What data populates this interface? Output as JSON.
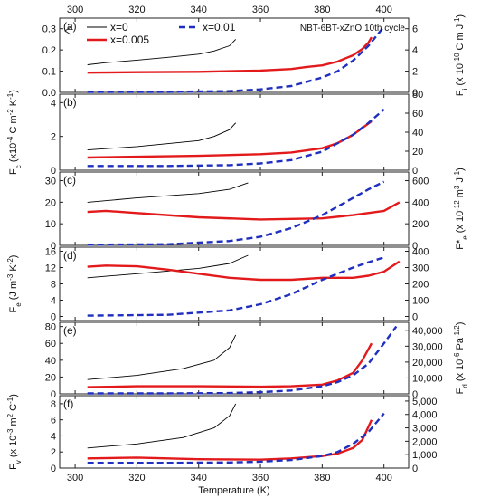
{
  "chart_data": {
    "type": "line",
    "annotation": "NBT-6BT-xZnO 10th cycle",
    "xlabel": "Temperature (K)",
    "xlim": [
      295,
      408
    ],
    "x_ticks": [
      "300",
      "320",
      "340",
      "360",
      "380",
      "400"
    ],
    "x_tick_values": [
      300,
      320,
      340,
      360,
      380,
      400
    ],
    "legend": [
      {
        "name": "x=0",
        "color": "#000000",
        "dash": "solid"
      },
      {
        "name": "x=0.005",
        "color": "#e31a1c",
        "dash": "solid"
      },
      {
        "name": "x=0.01",
        "color": "#1f2fbf",
        "dash": "dashed"
      }
    ],
    "colors": {
      "x=0": "#000000",
      "x=0.005": "#e31a1c",
      "x=0.01": "#1f2fbf"
    },
    "panels": [
      {
        "label": "(a)",
        "left": {
          "ylim": [
            0,
            0.35
          ],
          "ticks": [
            "0.0",
            "0.1",
            "0.2",
            "0.3"
          ],
          "tick_values": [
            0,
            0.1,
            0.2,
            0.3
          ],
          "label_parts": []
        },
        "right": {
          "ylim": [
            0,
            7
          ],
          "ticks": [
            "0",
            "2",
            "4",
            "6"
          ],
          "tick_values": [
            0,
            2,
            4,
            6
          ],
          "label_parts": [
            "F",
            "i",
            " (x 10",
            "-10",
            " C m J",
            "-1",
            ")"
          ],
          "label_fmt": "bsnpnpn"
        },
        "series": [
          {
            "name": "x=0",
            "axis": "left",
            "x": [
              304,
              310,
              320,
              330,
              340,
              345,
              350,
              352
            ],
            "y": [
              0.13,
              0.14,
              0.152,
              0.165,
              0.18,
              0.195,
              0.22,
              0.25
            ]
          },
          {
            "name": "x=0.005",
            "axis": "left",
            "x": [
              304,
              320,
              340,
              360,
              370,
              375,
              380,
              385,
              390,
              393,
              395,
              396
            ],
            "y": [
              0.093,
              0.095,
              0.097,
              0.103,
              0.11,
              0.12,
              0.127,
              0.145,
              0.175,
              0.205,
              0.235,
              0.26
            ]
          },
          {
            "name": "x=0.01",
            "axis": "left",
            "x": [
              304,
              330,
              350,
              360,
              370,
              380,
              385,
              390,
              395,
              400
            ],
            "y": [
              0.002,
              0.002,
              0.006,
              0.014,
              0.03,
              0.07,
              0.1,
              0.15,
              0.22,
              0.31
            ]
          }
        ]
      },
      {
        "label": "(b)",
        "left": {
          "ylim": [
            0,
            4.5
          ],
          "ticks": [
            "0",
            "2",
            "4"
          ],
          "tick_values": [
            0,
            2,
            4
          ],
          "label_parts": [
            "F",
            "c",
            " (x10",
            "-4",
            " C m",
            "-2",
            " K",
            "-1",
            ")"
          ],
          "label_fmt": "bsnpnpnpn"
        },
        "right": {
          "ylim": [
            0,
            80
          ],
          "ticks": [
            "0",
            "20",
            "40",
            "60",
            "80"
          ],
          "tick_values": [
            0,
            20,
            40,
            60,
            80
          ],
          "label_parts": []
        },
        "series": [
          {
            "name": "x=0",
            "axis": "left",
            "x": [
              304,
              320,
              340,
              345,
              350,
              352
            ],
            "y": [
              1.2,
              1.4,
              1.75,
              2.0,
              2.4,
              2.8
            ]
          },
          {
            "name": "x=0.005",
            "axis": "left",
            "x": [
              304,
              320,
              340,
              360,
              370,
              380,
              385,
              390,
              393,
              396
            ],
            "y": [
              0.75,
              0.8,
              0.85,
              0.95,
              1.05,
              1.3,
              1.6,
              2.1,
              2.5,
              2.9
            ]
          },
          {
            "name": "x=0.01",
            "axis": "left",
            "x": [
              304,
              330,
              350,
              360,
              370,
              380,
              390,
              395,
              400
            ],
            "y": [
              0.25,
              0.25,
              0.3,
              0.4,
              0.6,
              1.1,
              2.1,
              2.8,
              3.6
            ]
          }
        ]
      },
      {
        "label": "(c)",
        "left": {
          "ylim": [
            0,
            34
          ],
          "ticks": [
            "0",
            "10",
            "20",
            "30"
          ],
          "tick_values": [
            0,
            10,
            20,
            30
          ],
          "label_parts": []
        },
        "right": {
          "ylim": [
            0,
            680
          ],
          "ticks": [
            "0",
            "200",
            "400",
            "600"
          ],
          "tick_values": [
            0,
            200,
            400,
            600
          ],
          "label_parts": [
            "F*",
            "e",
            " (x 10",
            "-12",
            " m",
            "3",
            " J",
            "-1",
            ")"
          ],
          "label_fmt": "bsnpnpnpn"
        },
        "series": [
          {
            "name": "x=0",
            "axis": "left",
            "x": [
              304,
              320,
              340,
              350,
              356
            ],
            "y": [
              20,
              22,
              24,
              26,
              29
            ]
          },
          {
            "name": "x=0.005",
            "axis": "left",
            "x": [
              304,
              310,
              320,
              340,
              360,
              380,
              390,
              400,
              405
            ],
            "y": [
              15.5,
              16,
              15,
              13,
              12,
              12.5,
              14,
              16,
              20
            ]
          },
          {
            "name": "x=0.01",
            "axis": "left",
            "x": [
              304,
              330,
              350,
              360,
              370,
              380,
              390,
              395,
              400
            ],
            "y": [
              0.3,
              0.5,
              2,
              4,
              8,
              14,
              22,
              26,
              29.5
            ]
          }
        ]
      },
      {
        "label": "(d)",
        "left": {
          "ylim": [
            -1,
            17
          ],
          "ticks": [
            "0",
            "4",
            "8",
            "12",
            "16"
          ],
          "tick_values": [
            0,
            4,
            8,
            12,
            16
          ],
          "label_parts": [
            "F",
            "e",
            " (J m",
            "-3",
            " K",
            "-2",
            ")"
          ],
          "label_fmt": "bsnpnpn"
        },
        "right": {
          "ylim": [
            -25,
            425
          ],
          "ticks": [
            "0",
            "100",
            "200",
            "300",
            "400"
          ],
          "tick_values": [
            0,
            100,
            200,
            300,
            400
          ],
          "label_parts": []
        },
        "series": [
          {
            "name": "x=0",
            "axis": "left",
            "x": [
              304,
              320,
              340,
              350,
              356
            ],
            "y": [
              9.5,
              10.5,
              11.8,
              13,
              15
            ]
          },
          {
            "name": "x=0.005",
            "axis": "left",
            "x": [
              304,
              310,
              320,
              330,
              340,
              350,
              360,
              370,
              380,
              390,
              395,
              400,
              405
            ],
            "y": [
              12.2,
              12.5,
              12.3,
              11.5,
              10.5,
              9.5,
              9,
              9,
              9.5,
              9.5,
              10,
              11,
              13.5
            ]
          },
          {
            "name": "x=0.01",
            "axis": "left",
            "x": [
              304,
              330,
              350,
              360,
              370,
              380,
              390,
              395,
              400
            ],
            "y": [
              0.2,
              0.4,
              1.5,
              3,
              5.5,
              9,
              12,
              13.3,
              14.5
            ]
          }
        ]
      },
      {
        "label": "(e)",
        "left": {
          "ylim": [
            0,
            85
          ],
          "ticks": [
            "0",
            "20",
            "40",
            "60",
            "80"
          ],
          "tick_values": [
            0,
            20,
            40,
            60,
            80
          ],
          "label_parts": []
        },
        "right": {
          "ylim": [
            0,
            45000
          ],
          "ticks": [
            "0",
            "10,000",
            "20,000",
            "30,000",
            "40,000"
          ],
          "tick_values": [
            0,
            10000,
            20000,
            30000,
            40000
          ],
          "label_parts": [
            "F",
            "d",
            " (x 10",
            "-6",
            " Pa",
            "-1/2",
            ")"
          ],
          "label_fmt": "bsnpnpn"
        },
        "series": [
          {
            "name": "x=0",
            "axis": "left",
            "x": [
              304,
              320,
              335,
              345,
              350,
              352
            ],
            "y": [
              17,
              22,
              30,
              40,
              55,
              70
            ]
          },
          {
            "name": "x=0.005",
            "axis": "left",
            "x": [
              304,
              320,
              340,
              360,
              370,
              380,
              385,
              390,
              393,
              396
            ],
            "y": [
              8,
              9,
              9,
              8.5,
              9,
              11,
              16,
              25,
              40,
              60
            ]
          },
          {
            "name": "x=0.01",
            "axis": "left",
            "x": [
              304,
              330,
              350,
              360,
              370,
              380,
              385,
              390,
              395,
              400,
              404
            ],
            "y": [
              0.5,
              0.5,
              1,
              2,
              4,
              9,
              14,
              22,
              36,
              60,
              80
            ]
          }
        ]
      },
      {
        "label": "(f)",
        "left": {
          "ylim": [
            0,
            9
          ],
          "ticks": [
            "0",
            "2",
            "4",
            "6",
            "8"
          ],
          "tick_values": [
            0,
            2,
            4,
            6,
            8
          ],
          "label_parts": [
            "F",
            "v",
            " (x 10",
            "-3",
            " m",
            "2",
            " C",
            "-1",
            ")"
          ],
          "label_fmt": "bsnpnpnpn"
        },
        "right": {
          "ylim": [
            0,
            5400
          ],
          "ticks": [
            "0",
            "1,000",
            "2,000",
            "3,000",
            "4,000",
            "5,000"
          ],
          "tick_values": [
            0,
            1000,
            2000,
            3000,
            4000,
            5000
          ],
          "label_parts": []
        },
        "series": [
          {
            "name": "x=0",
            "axis": "left",
            "x": [
              304,
              320,
              335,
              345,
              350,
              352
            ],
            "y": [
              2.5,
              3,
              3.8,
              5,
              6.5,
              8
            ]
          },
          {
            "name": "x=0.005",
            "axis": "left",
            "x": [
              304,
              320,
              340,
              360,
              370,
              380,
              385,
              390,
              393,
              396
            ],
            "y": [
              1.2,
              1.3,
              1.1,
              1.05,
              1.2,
              1.5,
              1.8,
              2.5,
              3.5,
              6
            ]
          },
          {
            "name": "x=0.01",
            "axis": "left",
            "x": [
              304,
              330,
              350,
              360,
              370,
              380,
              385,
              390,
              395,
              400
            ],
            "y": [
              0.65,
              0.65,
              0.7,
              0.8,
              1,
              1.5,
              2,
              3,
              4.5,
              6.8
            ]
          }
        ]
      }
    ]
  }
}
